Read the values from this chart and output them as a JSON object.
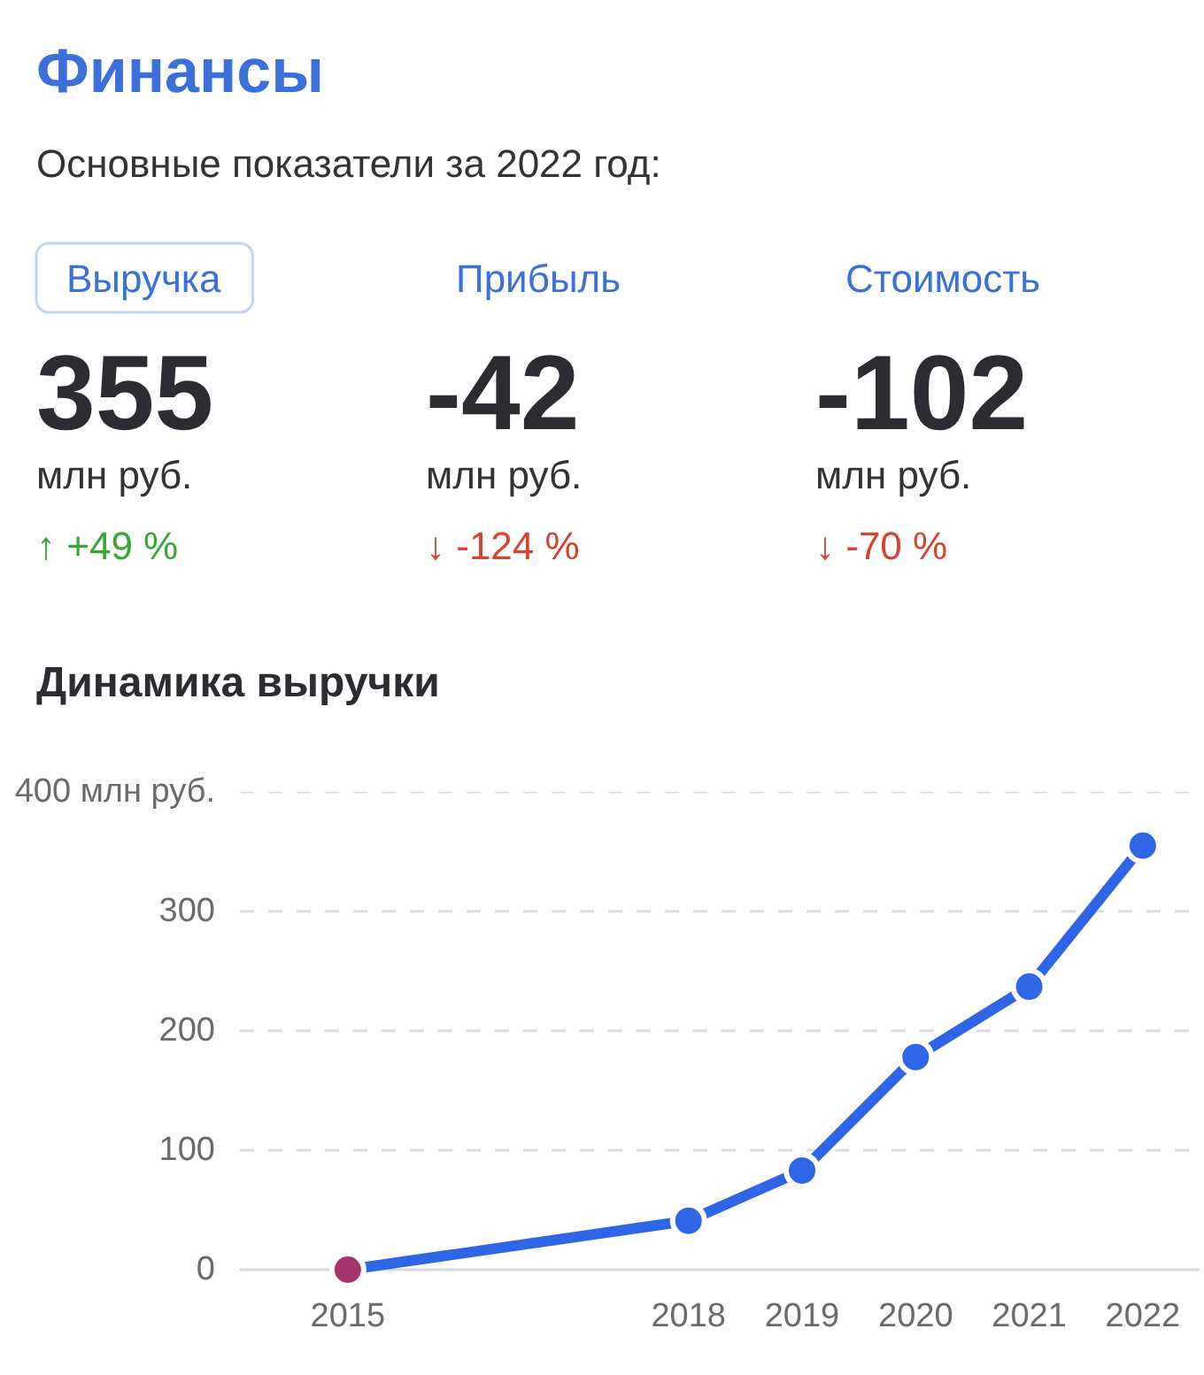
{
  "chart_data": [
    {
      "type": "other",
      "title": "Финансы",
      "subtitle": "Основные показатели за 2022 год:",
      "categories": [
        "Выручка",
        "Прибыль",
        "Стоимость"
      ],
      "values": [
        355,
        -42,
        -102
      ],
      "data_labels": true,
      "ylabel": "млн руб.",
      "annotations": [
        "↑ +49 %",
        "↓ -124 %",
        "↓ -70 %"
      ]
    },
    {
      "type": "line",
      "title": "Динамика выручки",
      "x": [
        2015,
        2018,
        2019,
        2020,
        2021,
        2022
      ],
      "series": [
        {
          "color": "#2f66e8",
          "colors": [
            "#a8326a",
            "#2f66e8",
            "#2f66e8",
            "#2f66e8",
            "#2f66e8",
            "#2f66e8"
          ],
          "values": [
            0,
            41,
            83,
            178,
            237,
            355
          ]
        }
      ],
      "xlim": [
        2014.05,
        2022.5
      ],
      "xticks": [
        2015,
        2018,
        2019,
        2020,
        2021,
        2022
      ],
      "ylim": [
        0,
        400
      ],
      "yticks": [
        0,
        100,
        200,
        300,
        {
          "value": 400,
          "label": "400 млн руб."
        }
      ],
      "grid": "y",
      "marker": "circle",
      "line_style": "solid"
    }
  ]
}
